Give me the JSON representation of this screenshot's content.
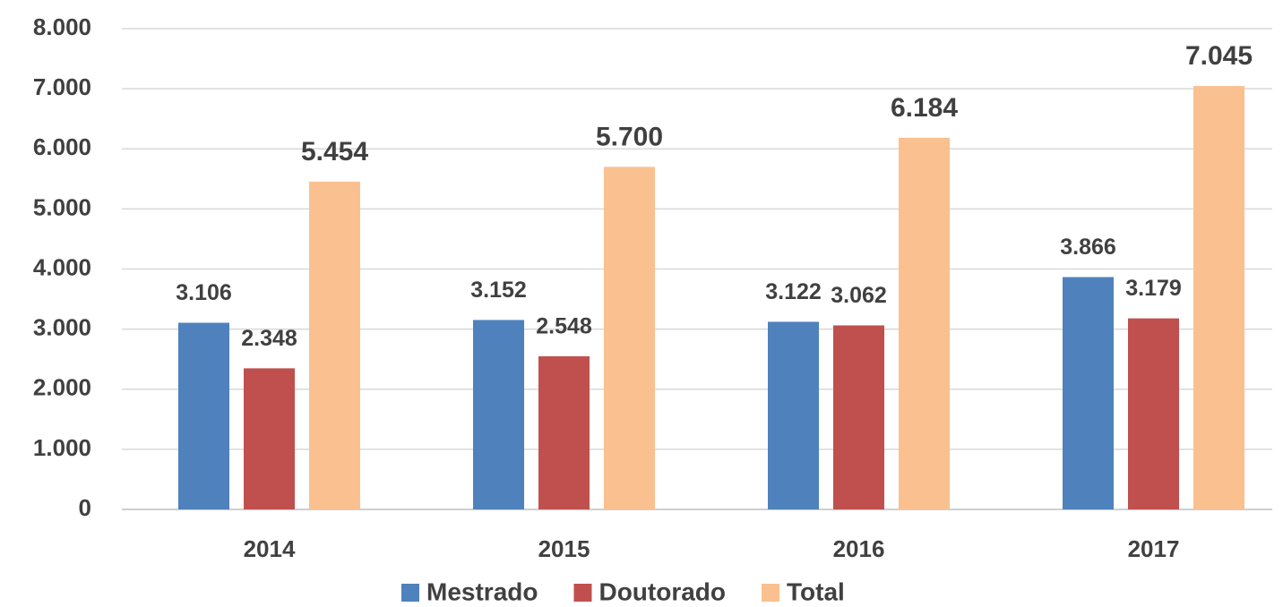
{
  "chart_data": {
    "type": "bar",
    "categories": [
      "2014",
      "2015",
      "2016",
      "2017"
    ],
    "series": [
      {
        "name": "Mestrado",
        "color": "#4f81bd",
        "values": [
          3106,
          3152,
          3122,
          3866
        ],
        "value_labels": [
          "3.106",
          "3.152",
          "3.122",
          "3.866"
        ]
      },
      {
        "name": "Doutorado",
        "color": "#c0504d",
        "values": [
          2348,
          2548,
          3062,
          3179
        ],
        "value_labels": [
          "2.348",
          "2.548",
          "3.062",
          "3.179"
        ]
      },
      {
        "name": "Total",
        "color": "#fac090",
        "values": [
          5454,
          5700,
          6184,
          7045
        ],
        "value_labels": [
          "5.454",
          "5.700",
          "6.184",
          "7.045"
        ]
      }
    ],
    "ylim": [
      0,
      8000
    ],
    "yticks": [
      0,
      {
        "value": 1000,
        "label": "1.000"
      },
      {
        "value": 2000,
        "label": "2.000"
      },
      {
        "value": 3000,
        "label": "3.000"
      },
      {
        "value": 4000,
        "label": "4.000"
      },
      {
        "value": 5000,
        "label": "5.000"
      },
      {
        "value": 6000,
        "label": "6.000"
      },
      {
        "value": 7000,
        "label": "7.000"
      },
      {
        "value": 8000,
        "label": "8.000"
      }
    ],
    "grid": true,
    "legend": "bottom"
  }
}
